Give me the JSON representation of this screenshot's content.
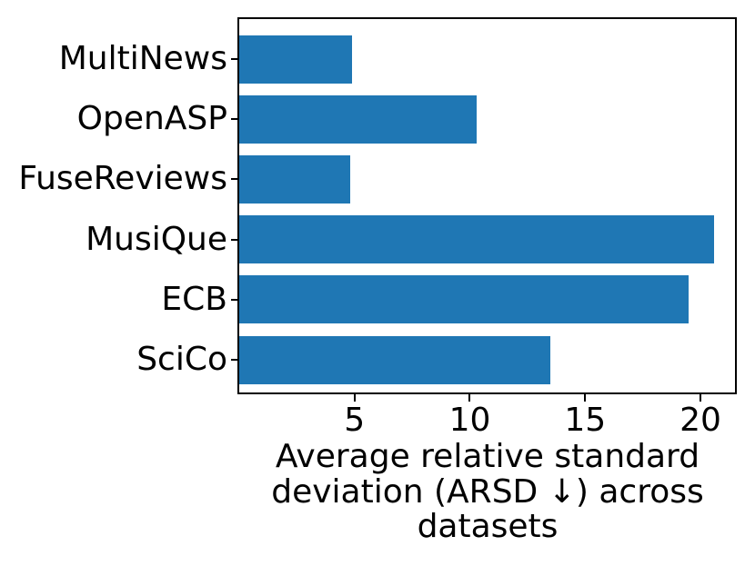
{
  "chart_data": {
    "type": "bar",
    "orientation": "horizontal",
    "title": "",
    "categories": [
      "MultiNews",
      "OpenASP",
      "FuseReviews",
      "MusiQue",
      "ECB",
      "SciCo"
    ],
    "values": [
      4.9,
      10.3,
      4.8,
      20.6,
      19.5,
      13.5
    ],
    "xlabel": "Average relative standard deviation (ARSD ↓) across datasets",
    "xlabel_lines": [
      "Average relative standard",
      "deviation (ARSD ↓) across",
      "datasets"
    ],
    "ylabel": "",
    "xlim": [
      0,
      21.5
    ],
    "xticks": [
      "5",
      "10",
      "15",
      "20"
    ],
    "xtick_values": [
      5,
      10,
      15,
      20
    ],
    "bar_color": "#1f77b4",
    "axis_color": "#000000",
    "text_color": "#000000",
    "background_color": "#ffffff",
    "grid": false,
    "legend_position": "none",
    "bar_height_fraction": 0.8
  }
}
